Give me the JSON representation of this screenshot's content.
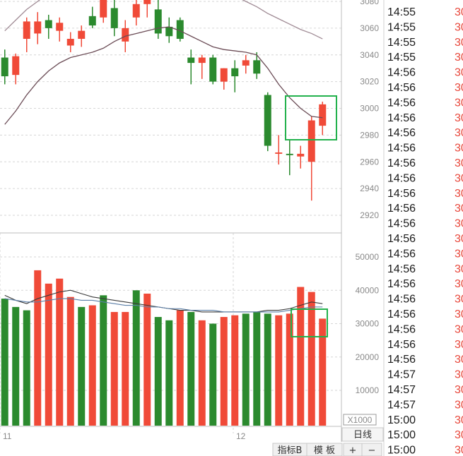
{
  "chart_data": [
    {
      "type": "candlestick",
      "title": "",
      "ylim": [
        2915,
        3085
      ],
      "y_ticks": [
        3080,
        3060,
        3040,
        3020,
        3000,
        2980,
        2960,
        2940,
        2920
      ],
      "x_labels": [
        "11",
        "12"
      ],
      "colors": {
        "up": "#f04a38",
        "down": "#2b8a2e"
      },
      "candles": [
        {
          "o": 3038,
          "h": 3044,
          "l": 3018,
          "c": 3024
        },
        {
          "o": 3025,
          "h": 3041,
          "l": 3018,
          "c": 3039
        },
        {
          "o": 3052,
          "h": 3068,
          "l": 3042,
          "c": 3065
        },
        {
          "o": 3056,
          "h": 3072,
          "l": 3048,
          "c": 3065
        },
        {
          "o": 3066,
          "h": 3070,
          "l": 3052,
          "c": 3060
        },
        {
          "o": 3058,
          "h": 3068,
          "l": 3050,
          "c": 3064
        },
        {
          "o": 3047,
          "h": 3057,
          "l": 3042,
          "c": 3052
        },
        {
          "o": 3052,
          "h": 3062,
          "l": 3046,
          "c": 3058
        },
        {
          "o": 3069,
          "h": 3076,
          "l": 3060,
          "c": 3062
        },
        {
          "o": 3068,
          "h": 3086,
          "l": 3064,
          "c": 3083
        },
        {
          "o": 3075,
          "h": 3088,
          "l": 3054,
          "c": 3060
        },
        {
          "o": 3050,
          "h": 3066,
          "l": 3042,
          "c": 3060
        },
        {
          "o": 3068,
          "h": 3082,
          "l": 3062,
          "c": 3078
        },
        {
          "o": 3078,
          "h": 3088,
          "l": 3068,
          "c": 3082
        },
        {
          "o": 3074,
          "h": 3084,
          "l": 3052,
          "c": 3056
        },
        {
          "o": 3061,
          "h": 3068,
          "l": 3049,
          "c": 3054
        },
        {
          "o": 3066,
          "h": 3068,
          "l": 3050,
          "c": 3052
        },
        {
          "o": 3038,
          "h": 3044,
          "l": 3018,
          "c": 3034
        },
        {
          "o": 3034,
          "h": 3040,
          "l": 3022,
          "c": 3038
        },
        {
          "o": 3038,
          "h": 3040,
          "l": 3018,
          "c": 3020
        },
        {
          "o": 3020,
          "h": 3030,
          "l": 3014,
          "c": 3030
        },
        {
          "o": 3030,
          "h": 3036,
          "l": 3012,
          "c": 3024
        },
        {
          "o": 3032,
          "h": 3040,
          "l": 3026,
          "c": 3036
        },
        {
          "o": 3036,
          "h": 3042,
          "l": 3022,
          "c": 3026
        },
        {
          "o": 3010,
          "h": 3012,
          "l": 2968,
          "c": 2972
        },
        {
          "o": 2966,
          "h": 2980,
          "l": 2958,
          "c": 2967
        },
        {
          "o": 2966,
          "h": 2976,
          "l": 2950,
          "c": 2965
        },
        {
          "o": 2964,
          "h": 2972,
          "l": 2955,
          "c": 2966
        },
        {
          "o": 2960,
          "h": 2994,
          "l": 2931,
          "c": 2991
        },
        {
          "o": 2987,
          "h": 3005,
          "l": 2980,
          "c": 3003
        }
      ],
      "ma": [
        {
          "color": "#6b4c56",
          "values": [
            2988,
            2998,
            3010,
            3020,
            3028,
            3034,
            3038,
            3040,
            3042,
            3045,
            3050,
            3054,
            3056,
            3058,
            3060,
            3061,
            3058,
            3054,
            3050,
            3046,
            3044,
            3043,
            3042,
            3040,
            3030,
            3018,
            3008,
            3000,
            2994,
            2993
          ]
        },
        {
          "color": "#a08b95",
          "values": [
            3058,
            3066,
            3074,
            3080,
            3086,
            3090,
            3092,
            3093,
            3094,
            3094,
            3094,
            3094,
            3094,
            3094,
            3094,
            3093,
            3092,
            3091,
            3090,
            3089,
            3087,
            3084,
            3080,
            3076,
            3071,
            3067,
            3063,
            3059,
            3056,
            3052
          ]
        }
      ]
    },
    {
      "type": "bar",
      "title": "",
      "ylim": [
        0,
        58000
      ],
      "y_ticks": [
        50000,
        40000,
        30000,
        20000,
        10000
      ],
      "unit_label": "X1000",
      "colors": {
        "up": "#f04a38",
        "down": "#2b8a2e"
      },
      "values": [
        37500,
        35000,
        34000,
        46000,
        42000,
        43500,
        38000,
        35000,
        35500,
        38500,
        33500,
        33500,
        40000,
        39000,
        32000,
        31000,
        34000,
        33500,
        31000,
        30000,
        32000,
        32500,
        33000,
        33500,
        33000,
        32500,
        33000,
        41000,
        39500,
        31500
      ],
      "directions": [
        "down",
        "down",
        "down",
        "up",
        "up",
        "up",
        "up",
        "down",
        "up",
        "down",
        "up",
        "up",
        "down",
        "up",
        "down",
        "down",
        "up",
        "down",
        "up",
        "down",
        "up",
        "up",
        "down",
        "down",
        "down",
        "up",
        "up",
        "up",
        "up",
        "up"
      ],
      "ma": [
        {
          "color": "#3a3a3a",
          "values": [
            38500,
            37000,
            36000,
            37500,
            38500,
            39500,
            40000,
            39000,
            38000,
            37500,
            37000,
            36500,
            36000,
            35500,
            35000,
            34500,
            34000,
            34000,
            33500,
            33500,
            33500,
            33500,
            33500,
            33500,
            34000,
            34000,
            34500,
            35500,
            36500,
            36000
          ]
        },
        {
          "color": "#5b7fa8",
          "values": [
            37500,
            37000,
            36500,
            36500,
            37000,
            37500,
            37500,
            37000,
            37000,
            36500,
            36000,
            35500,
            35500,
            35000,
            35000,
            34500,
            34500,
            34000,
            34000,
            34000,
            33500,
            33500,
            33500,
            33500,
            33500,
            33500,
            34000,
            34500,
            35000,
            35000
          ]
        }
      ]
    }
  ],
  "time_list": [
    "14:55",
    "14:55",
    "14:55",
    "14:55",
    "14:56",
    "14:56",
    "14:56",
    "14:56",
    "14:56",
    "14:56",
    "14:56",
    "14:56",
    "14:56",
    "14:56",
    "14:56",
    "14:56",
    "14:56",
    "14:56",
    "14:56",
    "14:56",
    "14:56",
    "14:56",
    "14:56",
    "14:56",
    "14:57",
    "14:57",
    "14:57",
    "15:00",
    "15:00",
    "15:00"
  ],
  "price_list_prefix": "30",
  "buttons": {
    "period": "日线",
    "indicator": "指标B",
    "template": "模 板",
    "zoom_in": "+",
    "zoom_out": "−"
  }
}
